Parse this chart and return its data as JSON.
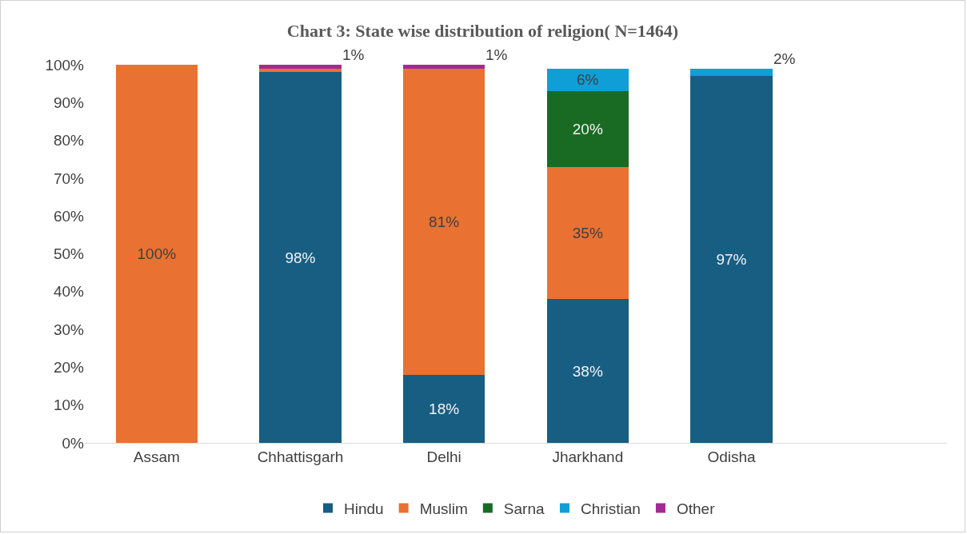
{
  "chart_data": {
    "type": "bar",
    "stacked": true,
    "title": "Chart 3: State wise distribution of religion( N=1464)",
    "categories": [
      "Assam",
      "Chhattisgarh",
      "Delhi",
      "Jharkhand",
      "Odisha"
    ],
    "series": [
      {
        "name": "Hindu",
        "color": "#175e82",
        "values": [
          null,
          98,
          18,
          38,
          97
        ],
        "value_labels": [
          null,
          "98%",
          "18%",
          "38%",
          "97%"
        ]
      },
      {
        "name": "Muslim",
        "color": "#e97132",
        "values": [
          100,
          1,
          81,
          35,
          null
        ],
        "value_labels": [
          "100%",
          null,
          "81%",
          "35%",
          null
        ]
      },
      {
        "name": "Sarna",
        "color": "#196b24",
        "values": [
          null,
          null,
          null,
          20,
          null
        ],
        "value_labels": [
          null,
          null,
          null,
          "20%",
          null
        ]
      },
      {
        "name": "Christian",
        "color": "#0f9ed5",
        "values": [
          null,
          null,
          null,
          6,
          2
        ],
        "value_labels": [
          null,
          null,
          null,
          "6%",
          "2%"
        ]
      },
      {
        "name": "Other",
        "color": "#a02b93",
        "values": [
          null,
          1,
          1,
          null,
          null
        ],
        "value_labels": [
          null,
          "1%",
          "1%",
          null,
          null
        ]
      }
    ],
    "ylim": [
      0,
      100
    ],
    "yticks": [
      {
        "value": 0,
        "label": "0%"
      },
      {
        "value": 10,
        "label": "10%"
      },
      {
        "value": 20,
        "label": "20%"
      },
      {
        "value": 30,
        "label": "30%"
      },
      {
        "value": 40,
        "label": "40%"
      },
      {
        "value": 50,
        "label": "50%"
      },
      {
        "value": 60,
        "label": "60%"
      },
      {
        "value": 70,
        "label": "70%"
      },
      {
        "value": 80,
        "label": "80%"
      },
      {
        "value": 90,
        "label": "90%"
      },
      {
        "value": 100,
        "label": "100%"
      }
    ],
    "grid": false,
    "legend": "bottom"
  }
}
